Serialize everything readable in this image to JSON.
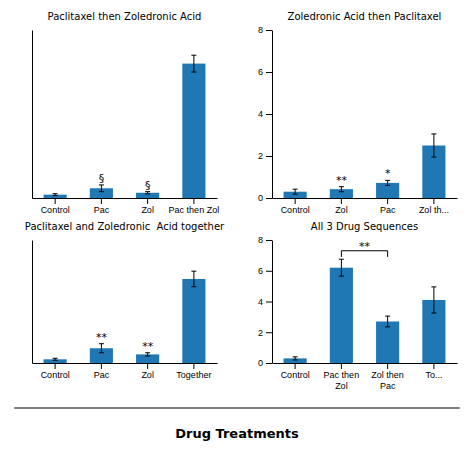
{
  "chart_data": [
    {
      "type": "bar",
      "title": "Paclitaxel then Zoledronic Acid",
      "categories": [
        "Control",
        "Pac",
        "Zol",
        "Pac then Zol"
      ],
      "values": [
        0.18,
        0.52,
        0.28,
        7.2
      ],
      "errors": [
        0.05,
        0.18,
        0.06,
        0.45
      ],
      "annotations": [
        null,
        "§",
        "§",
        null
      ],
      "ylim": [
        0,
        9
      ],
      "tick_labels": "x"
    },
    {
      "type": "bar",
      "title": "Zoledronic Acid then Paclitaxel",
      "categories": [
        "Control",
        "Zol",
        "Pac",
        "Zol th..."
      ],
      "values": [
        0.3,
        0.42,
        0.72,
        2.5
      ],
      "errors": [
        0.12,
        0.12,
        0.12,
        0.55
      ],
      "annotations": [
        null,
        "**",
        "*",
        null
      ],
      "ylim": [
        0,
        8
      ],
      "yticks": [
        0,
        2,
        4,
        6,
        8
      ]
    },
    {
      "type": "bar",
      "title": "Paclitaxel and Zoledronic  Acid together",
      "categories": [
        "Control",
        "Pac",
        "Zol",
        "Together"
      ],
      "values": [
        0.18,
        0.72,
        0.42,
        4.1
      ],
      "errors": [
        0.05,
        0.22,
        0.08,
        0.38
      ],
      "annotations": [
        null,
        "**",
        "**",
        null
      ],
      "ylim": [
        0,
        6
      ],
      "tick_labels": "x"
    },
    {
      "type": "bar",
      "title": "All 3 Drug Sequences",
      "categories": [
        "Control",
        "Pac then\nZol",
        "Zol then\nPac",
        "To..."
      ],
      "values": [
        0.3,
        6.2,
        2.7,
        4.1
      ],
      "errors": [
        0.1,
        0.55,
        0.35,
        0.85
      ],
      "bracket": {
        "from": 1,
        "to": 2,
        "y": 7.3,
        "label": "**"
      },
      "ylim": [
        0,
        8
      ],
      "yticks": [
        0,
        2,
        4,
        6,
        8
      ]
    }
  ],
  "xlabel": "Drug Treatments"
}
